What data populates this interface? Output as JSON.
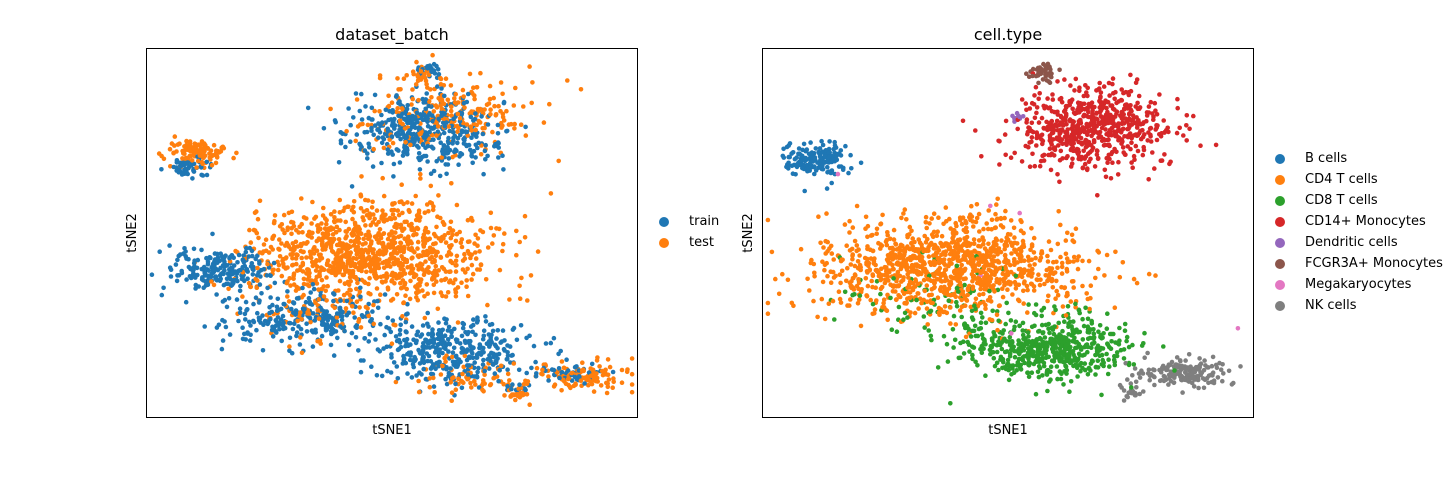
{
  "chart_data": [
    {
      "type": "scatter",
      "title": "dataset_batch",
      "xlabel": "tSNE1",
      "ylabel": "tSNE2",
      "xlim": [
        0,
        100
      ],
      "ylim": [
        0,
        100
      ],
      "grid": false,
      "legend_position": "right",
      "series": [
        {
          "name": "train",
          "color": "#1f77b4",
          "clusters": [
            {
              "cx": 56.5,
              "cy": 77.0,
              "sx": 7.5,
              "sy": 5.0,
              "n": 420
            },
            {
              "cx": 57.0,
              "cy": 94.0,
              "sx": 1.6,
              "sy": 1.0,
              "n": 26
            },
            {
              "cx": 8.5,
              "cy": 68.0,
              "sx": 2.2,
              "sy": 1.3,
              "n": 50
            },
            {
              "cx": 15.0,
              "cy": 40.0,
              "sx": 5.0,
              "sy": 3.0,
              "n": 220
            },
            {
              "cx": 32.0,
              "cy": 27.0,
              "sx": 8.0,
              "sy": 4.0,
              "n": 260
            },
            {
              "cx": 62.0,
              "cy": 18.0,
              "sx": 9.0,
              "sy": 4.5,
              "n": 380
            },
            {
              "cx": 86.0,
              "cy": 12.0,
              "sx": 3.0,
              "sy": 1.5,
              "n": 40
            },
            {
              "cx": 75.0,
              "cy": 8.0,
              "sx": 1.2,
              "sy": 0.8,
              "n": 12
            }
          ]
        },
        {
          "name": "test",
          "color": "#ff7f0e",
          "clusters": [
            {
              "cx": 61.0,
              "cy": 82.0,
              "sx": 9.0,
              "sy": 5.0,
              "n": 240
            },
            {
              "cx": 56.0,
              "cy": 93.5,
              "sx": 1.5,
              "sy": 1.0,
              "n": 20
            },
            {
              "cx": 10.5,
              "cy": 72.0,
              "sx": 3.0,
              "sy": 2.0,
              "n": 110
            },
            {
              "cx": 45.0,
              "cy": 44.0,
              "sx": 12.0,
              "sy": 7.0,
              "n": 1050
            },
            {
              "cx": 34.0,
              "cy": 28.0,
              "sx": 7.0,
              "sy": 4.0,
              "n": 50
            },
            {
              "cx": 66.0,
              "cy": 11.0,
              "sx": 5.5,
              "sy": 2.5,
              "n": 70
            },
            {
              "cx": 89.0,
              "cy": 11.0,
              "sx": 5.0,
              "sy": 2.0,
              "n": 110
            },
            {
              "cx": 75.5,
              "cy": 6.0,
              "sx": 1.5,
              "sy": 0.8,
              "n": 22
            }
          ]
        }
      ]
    },
    {
      "type": "scatter",
      "title": "cell.type",
      "xlabel": "tSNE1",
      "ylabel": "tSNE2",
      "xlim": [
        0,
        100
      ],
      "ylim": [
        0,
        100
      ],
      "grid": false,
      "legend_position": "right",
      "series": [
        {
          "name": "B cells",
          "color": "#1f77b4",
          "clusters": [
            {
              "cx": 10.5,
              "cy": 70.0,
              "sx": 3.2,
              "sy": 2.2,
              "n": 170
            }
          ]
        },
        {
          "name": "CD4 T cells",
          "color": "#ff7f0e",
          "clusters": [
            {
              "cx": 38.0,
              "cy": 41.0,
              "sx": 13.0,
              "sy": 6.5,
              "n": 1150
            }
          ]
        },
        {
          "name": "CD8 T cells",
          "color": "#2ca02c",
          "clusters": [
            {
              "cx": 58.0,
              "cy": 19.0,
              "sx": 9.0,
              "sy": 4.5,
              "n": 560
            },
            {
              "cx": 35.0,
              "cy": 32.0,
              "sx": 9.0,
              "sy": 5.0,
              "n": 90
            }
          ]
        },
        {
          "name": "CD14+ Monocytes",
          "color": "#d62728",
          "clusters": [
            {
              "cx": 67.0,
              "cy": 79.0,
              "sx": 8.0,
              "sy": 5.5,
              "n": 640
            }
          ]
        },
        {
          "name": "Dendritic cells",
          "color": "#9467bd",
          "clusters": [
            {
              "cx": 52.0,
              "cy": 81.5,
              "sx": 0.8,
              "sy": 0.6,
              "n": 9
            }
          ]
        },
        {
          "name": "FCGR3A+ Monocytes",
          "color": "#8c564b",
          "clusters": [
            {
              "cx": 57.0,
              "cy": 93.5,
              "sx": 1.6,
              "sy": 1.2,
              "n": 45
            }
          ]
        },
        {
          "name": "Megakaryocytes",
          "color": "#e377c2",
          "clusters": [
            {
              "cx": 50.0,
              "cy": 40.0,
              "sx": 20.0,
              "sy": 15.0,
              "n": 6
            }
          ]
        },
        {
          "name": "NK cells",
          "color": "#7f7f7f",
          "clusters": [
            {
              "cx": 86.0,
              "cy": 12.0,
              "sx": 4.5,
              "sy": 2.0,
              "n": 170
            },
            {
              "cx": 75.0,
              "cy": 7.0,
              "sx": 1.2,
              "sy": 1.2,
              "n": 22
            }
          ]
        }
      ]
    }
  ]
}
